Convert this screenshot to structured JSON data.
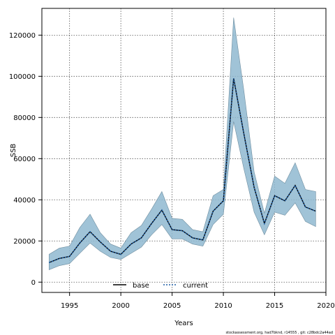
{
  "chart_data": {
    "type": "line",
    "title": "",
    "xlabel": "Years",
    "ylabel": "SSB",
    "xlim": [
      1992.3,
      2020
    ],
    "ylim": [
      -5000,
      133000
    ],
    "xticks": [
      1995,
      2000,
      2005,
      2010,
      2015,
      2020
    ],
    "yticks": [
      0,
      20000,
      40000,
      60000,
      80000,
      100000,
      120000
    ],
    "grid": true,
    "legend_position": "bottom-center",
    "x": [
      1993,
      1994,
      1995,
      1996,
      1997,
      1998,
      1999,
      2000,
      2001,
      2002,
      2003,
      2004,
      2005,
      2006,
      2007,
      2008,
      2009,
      2010,
      2011,
      2012,
      2013,
      2014,
      2015,
      2016,
      2017,
      2018,
      2019
    ],
    "series": [
      {
        "name": "base",
        "color": "#000000",
        "line_style": "solid",
        "values": [
          9500,
          11500,
          12500,
          19000,
          24500,
          19500,
          15000,
          13500,
          18500,
          21500,
          28500,
          35000,
          25500,
          25000,
          21500,
          20500,
          34500,
          39500,
          99000,
          72000,
          46000,
          28500,
          42000,
          39500,
          47000,
          36500,
          34500
        ]
      },
      {
        "name": "current",
        "color": "#1f5fa6",
        "line_style": "dotted",
        "values": [
          9500,
          11500,
          12500,
          19000,
          24500,
          19500,
          15000,
          13500,
          18500,
          21500,
          28500,
          35000,
          25500,
          25000,
          21500,
          20500,
          34500,
          39500,
          99000,
          72000,
          46000,
          28500,
          42000,
          39500,
          47000,
          36500,
          34500
        ]
      }
    ],
    "band": {
      "color": "#8fb8d0",
      "lower": [
        6000,
        8000,
        9000,
        14000,
        19000,
        15000,
        12000,
        11000,
        14000,
        17000,
        23000,
        28000,
        21000,
        21000,
        18500,
        17500,
        28000,
        33000,
        78000,
        55000,
        34000,
        23000,
        34000,
        32500,
        38500,
        29500,
        27000
      ],
      "upper": [
        13500,
        16500,
        17500,
        26500,
        33000,
        24000,
        18500,
        16500,
        24000,
        27500,
        35500,
        44000,
        31000,
        30500,
        25500,
        24500,
        42000,
        45000,
        128500,
        93000,
        53500,
        33500,
        51500,
        48000,
        58000,
        45000,
        44000
      ]
    },
    "footer": "stockassessment.org, had7bknd, r14555 , git: c28bdc2a44ad"
  }
}
